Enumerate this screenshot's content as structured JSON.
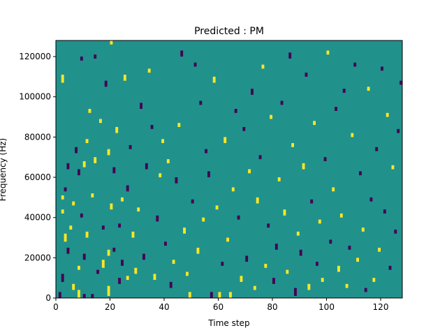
{
  "chart_data": {
    "type": "heatmap",
    "title": "Predicted : PM",
    "xlabel": "Time step",
    "ylabel": "Frequency (Hz)",
    "xlim": [
      0,
      128
    ],
    "ylim": [
      0,
      128000
    ],
    "grid": false,
    "x_ticks": [
      0,
      20,
      40,
      60,
      80,
      100,
      120
    ],
    "x_tick_labels": [
      "0",
      "20",
      "40",
      "60",
      "80",
      "100",
      "120"
    ],
    "y_ticks": [
      0,
      20000,
      40000,
      60000,
      80000,
      100000,
      120000
    ],
    "y_tick_labels": [
      "0",
      "20000",
      "40000",
      "60000",
      "80000",
      "100000",
      "120000"
    ],
    "value_range": [
      -1,
      1
    ],
    "background_value": 0,
    "colors": {
      "background": "#21918c",
      "positive": "#fde725",
      "negative": "#440154"
    },
    "grid_shape": {
      "time_steps": 128,
      "frequency_bins": 128,
      "bin_hz": 1000
    },
    "cells_note_units": "x = time step, y = frequency in Hz, h = band height in Hz, v = value",
    "cells": [
      {
        "x": 1,
        "y": 0,
        "h": 3000,
        "v": -1
      },
      {
        "x": 2,
        "y": 8000,
        "h": 4000,
        "v": -1
      },
      {
        "x": 2,
        "y": 42000,
        "h": 2000,
        "v": 1
      },
      {
        "x": 2,
        "y": 49000,
        "h": 2000,
        "v": 1
      },
      {
        "x": 2,
        "y": 107000,
        "h": 4000,
        "v": 1
      },
      {
        "x": 3,
        "y": 28000,
        "h": 4000,
        "v": 1
      },
      {
        "x": 3,
        "y": 53000,
        "h": 2000,
        "v": -1
      },
      {
        "x": 4,
        "y": 22000,
        "h": 3000,
        "v": -1
      },
      {
        "x": 4,
        "y": 64000,
        "h": 3000,
        "v": -1
      },
      {
        "x": 5,
        "y": 34000,
        "h": 2000,
        "v": 1
      },
      {
        "x": 6,
        "y": 4000,
        "h": 3000,
        "v": 1
      },
      {
        "x": 6,
        "y": 46000,
        "h": 2000,
        "v": 1
      },
      {
        "x": 7,
        "y": 72000,
        "h": 3000,
        "v": -1
      },
      {
        "x": 8,
        "y": 0,
        "h": 4000,
        "v": 1
      },
      {
        "x": 8,
        "y": 14000,
        "h": 2000,
        "v": 1
      },
      {
        "x": 8,
        "y": 61000,
        "h": 3000,
        "v": -1
      },
      {
        "x": 9,
        "y": 40000,
        "h": 2000,
        "v": -1
      },
      {
        "x": 9,
        "y": 118000,
        "h": 2000,
        "v": -1
      },
      {
        "x": 10,
        "y": 0,
        "h": 2000,
        "v": -1
      },
      {
        "x": 10,
        "y": 19000,
        "h": 3000,
        "v": -1
      },
      {
        "x": 10,
        "y": 65000,
        "h": 3000,
        "v": 1
      },
      {
        "x": 11,
        "y": 30000,
        "h": 3000,
        "v": 1
      },
      {
        "x": 11,
        "y": 77000,
        "h": 2000,
        "v": 1
      },
      {
        "x": 12,
        "y": 92000,
        "h": 2000,
        "v": 1
      },
      {
        "x": 13,
        "y": 0,
        "h": 2000,
        "v": -1
      },
      {
        "x": 13,
        "y": 50000,
        "h": 2000,
        "v": 1
      },
      {
        "x": 14,
        "y": 67000,
        "h": 3000,
        "v": 1
      },
      {
        "x": 14,
        "y": 119000,
        "h": 2000,
        "v": -1
      },
      {
        "x": 15,
        "y": 12000,
        "h": 2000,
        "v": -1
      },
      {
        "x": 16,
        "y": 87000,
        "h": 2000,
        "v": 1
      },
      {
        "x": 17,
        "y": 15000,
        "h": 4000,
        "v": 1
      },
      {
        "x": 17,
        "y": 34000,
        "h": 2000,
        "v": -1
      },
      {
        "x": 18,
        "y": 105000,
        "h": 3000,
        "v": -1
      },
      {
        "x": 19,
        "y": 1000,
        "h": 5000,
        "v": 1
      },
      {
        "x": 19,
        "y": 21000,
        "h": 3000,
        "v": 1
      },
      {
        "x": 19,
        "y": 71000,
        "h": 3000,
        "v": 1
      },
      {
        "x": 20,
        "y": 44000,
        "h": 3000,
        "v": 1
      },
      {
        "x": 20,
        "y": 126000,
        "h": 2000,
        "v": 1
      },
      {
        "x": 21,
        "y": 23000,
        "h": 2000,
        "v": -1
      },
      {
        "x": 21,
        "y": 62000,
        "h": 3000,
        "v": -1
      },
      {
        "x": 22,
        "y": 82000,
        "h": 3000,
        "v": 1
      },
      {
        "x": 23,
        "y": 7000,
        "h": 3000,
        "v": -1
      },
      {
        "x": 23,
        "y": 35000,
        "h": 2000,
        "v": -1
      },
      {
        "x": 24,
        "y": 16000,
        "h": 3000,
        "v": -1
      },
      {
        "x": 24,
        "y": 48000,
        "h": 2000,
        "v": 1
      },
      {
        "x": 25,
        "y": 108000,
        "h": 3000,
        "v": 1
      },
      {
        "x": 26,
        "y": 9000,
        "h": 2000,
        "v": 1
      },
      {
        "x": 26,
        "y": 53000,
        "h": 3000,
        "v": -1
      },
      {
        "x": 27,
        "y": 74000,
        "h": 2000,
        "v": -1
      },
      {
        "x": 28,
        "y": 30000,
        "h": 3000,
        "v": 1
      },
      {
        "x": 29,
        "y": 12000,
        "h": 3000,
        "v": 1
      },
      {
        "x": 30,
        "y": 43000,
        "h": 2000,
        "v": 1
      },
      {
        "x": 31,
        "y": 94000,
        "h": 3000,
        "v": -1
      },
      {
        "x": 32,
        "y": 19000,
        "h": 3000,
        "v": -1
      },
      {
        "x": 33,
        "y": 64000,
        "h": 3000,
        "v": -1
      },
      {
        "x": 34,
        "y": 112000,
        "h": 2000,
        "v": 1
      },
      {
        "x": 35,
        "y": 84000,
        "h": 2000,
        "v": -1
      },
      {
        "x": 36,
        "y": 9000,
        "h": 3000,
        "v": 1
      },
      {
        "x": 37,
        "y": 38000,
        "h": 3000,
        "v": -1
      },
      {
        "x": 38,
        "y": 60000,
        "h": 2000,
        "v": 1
      },
      {
        "x": 39,
        "y": 77000,
        "h": 2000,
        "v": 1
      },
      {
        "x": 40,
        "y": 26000,
        "h": 2000,
        "v": -1
      },
      {
        "x": 41,
        "y": 67000,
        "h": 2000,
        "v": 1
      },
      {
        "x": 42,
        "y": 5000,
        "h": 3000,
        "v": -1
      },
      {
        "x": 43,
        "y": 17000,
        "h": 2000,
        "v": 1
      },
      {
        "x": 44,
        "y": 57000,
        "h": 3000,
        "v": -1
      },
      {
        "x": 45,
        "y": 85000,
        "h": 2000,
        "v": 1
      },
      {
        "x": 46,
        "y": 120000,
        "h": 3000,
        "v": -1
      },
      {
        "x": 47,
        "y": 32000,
        "h": 3000,
        "v": 1
      },
      {
        "x": 48,
        "y": 11000,
        "h": 2000,
        "v": 1
      },
      {
        "x": 49,
        "y": 0,
        "h": 3000,
        "v": 1
      },
      {
        "x": 50,
        "y": 47000,
        "h": 2000,
        "v": -1
      },
      {
        "x": 51,
        "y": 115000,
        "h": 2000,
        "v": -1
      },
      {
        "x": 52,
        "y": 22000,
        "h": 3000,
        "v": 1
      },
      {
        "x": 53,
        "y": 96000,
        "h": 2000,
        "v": -1
      },
      {
        "x": 54,
        "y": 38000,
        "h": 2000,
        "v": 1
      },
      {
        "x": 55,
        "y": 72000,
        "h": 2000,
        "v": -1
      },
      {
        "x": 56,
        "y": 60000,
        "h": 3000,
        "v": -1
      },
      {
        "x": 57,
        "y": 0,
        "h": 3000,
        "v": -1
      },
      {
        "x": 58,
        "y": 107000,
        "h": 3000,
        "v": 1
      },
      {
        "x": 59,
        "y": 44000,
        "h": 2000,
        "v": 1
      },
      {
        "x": 60,
        "y": 0,
        "h": 3000,
        "v": 1
      },
      {
        "x": 61,
        "y": 16000,
        "h": 2000,
        "v": -1
      },
      {
        "x": 62,
        "y": 77000,
        "h": 3000,
        "v": 1
      },
      {
        "x": 63,
        "y": 28000,
        "h": 2000,
        "v": 1
      },
      {
        "x": 64,
        "y": 0,
        "h": 3000,
        "v": 1
      },
      {
        "x": 65,
        "y": 53000,
        "h": 2000,
        "v": 1
      },
      {
        "x": 66,
        "y": 92000,
        "h": 2000,
        "v": -1
      },
      {
        "x": 67,
        "y": 39000,
        "h": 2000,
        "v": -1
      },
      {
        "x": 68,
        "y": 8000,
        "h": 3000,
        "v": 1
      },
      {
        "x": 69,
        "y": 83000,
        "h": 2000,
        "v": -1
      },
      {
        "x": 70,
        "y": 18000,
        "h": 3000,
        "v": -1
      },
      {
        "x": 71,
        "y": 62000,
        "h": 2000,
        "v": 1
      },
      {
        "x": 72,
        "y": 101000,
        "h": 3000,
        "v": -1
      },
      {
        "x": 73,
        "y": 4000,
        "h": 2000,
        "v": 1
      },
      {
        "x": 74,
        "y": 47000,
        "h": 3000,
        "v": 1
      },
      {
        "x": 75,
        "y": 69000,
        "h": 2000,
        "v": -1
      },
      {
        "x": 76,
        "y": 114000,
        "h": 2000,
        "v": 1
      },
      {
        "x": 77,
        "y": 15000,
        "h": 2000,
        "v": 1
      },
      {
        "x": 78,
        "y": 35000,
        "h": 2000,
        "v": -1
      },
      {
        "x": 79,
        "y": 89000,
        "h": 2000,
        "v": 1
      },
      {
        "x": 80,
        "y": 7000,
        "h": 3000,
        "v": -1
      },
      {
        "x": 81,
        "y": 24000,
        "h": 3000,
        "v": -1
      },
      {
        "x": 82,
        "y": 58000,
        "h": 2000,
        "v": 1
      },
      {
        "x": 83,
        "y": 96000,
        "h": 2000,
        "v": -1
      },
      {
        "x": 84,
        "y": 41000,
        "h": 3000,
        "v": 1
      },
      {
        "x": 85,
        "y": 12000,
        "h": 2000,
        "v": 1
      },
      {
        "x": 86,
        "y": 119000,
        "h": 3000,
        "v": -1
      },
      {
        "x": 87,
        "y": 75000,
        "h": 2000,
        "v": 1
      },
      {
        "x": 88,
        "y": 1000,
        "h": 4000,
        "v": -1
      },
      {
        "x": 89,
        "y": 31000,
        "h": 2000,
        "v": 1
      },
      {
        "x": 90,
        "y": 21000,
        "h": 3000,
        "v": -1
      },
      {
        "x": 91,
        "y": 64000,
        "h": 3000,
        "v": 1
      },
      {
        "x": 92,
        "y": 110000,
        "h": 2000,
        "v": -1
      },
      {
        "x": 93,
        "y": 4000,
        "h": 3000,
        "v": 1
      },
      {
        "x": 94,
        "y": 47000,
        "h": 2000,
        "v": -1
      },
      {
        "x": 95,
        "y": 86000,
        "h": 2000,
        "v": 1
      },
      {
        "x": 96,
        "y": 16000,
        "h": 2000,
        "v": -1
      },
      {
        "x": 97,
        "y": 37000,
        "h": 2000,
        "v": 1
      },
      {
        "x": 98,
        "y": 8000,
        "h": 2000,
        "v": 1
      },
      {
        "x": 99,
        "y": 68000,
        "h": 2000,
        "v": -1
      },
      {
        "x": 100,
        "y": 121000,
        "h": 2000,
        "v": 1
      },
      {
        "x": 101,
        "y": 27000,
        "h": 2000,
        "v": -1
      },
      {
        "x": 102,
        "y": 53000,
        "h": 2000,
        "v": 1
      },
      {
        "x": 103,
        "y": 93000,
        "h": 2000,
        "v": -1
      },
      {
        "x": 104,
        "y": 13000,
        "h": 3000,
        "v": 1
      },
      {
        "x": 105,
        "y": 40000,
        "h": 2000,
        "v": 1
      },
      {
        "x": 106,
        "y": 102000,
        "h": 2000,
        "v": -1
      },
      {
        "x": 107,
        "y": 5000,
        "h": 2000,
        "v": 1
      },
      {
        "x": 108,
        "y": 24000,
        "h": 2000,
        "v": -1
      },
      {
        "x": 109,
        "y": 80000,
        "h": 2000,
        "v": 1
      },
      {
        "x": 110,
        "y": 115000,
        "h": 2000,
        "v": -1
      },
      {
        "x": 111,
        "y": 18000,
        "h": 2000,
        "v": 1
      },
      {
        "x": 112,
        "y": 61000,
        "h": 2000,
        "v": -1
      },
      {
        "x": 113,
        "y": 33000,
        "h": 2000,
        "v": 1
      },
      {
        "x": 114,
        "y": 3000,
        "h": 2000,
        "v": -1
      },
      {
        "x": 115,
        "y": 103000,
        "h": 2000,
        "v": 1
      },
      {
        "x": 116,
        "y": 48000,
        "h": 2000,
        "v": -1
      },
      {
        "x": 117,
        "y": 8000,
        "h": 2000,
        "v": 1
      },
      {
        "x": 118,
        "y": 73000,
        "h": 2000,
        "v": -1
      },
      {
        "x": 119,
        "y": 23000,
        "h": 2000,
        "v": 1
      },
      {
        "x": 120,
        "y": 113000,
        "h": 2000,
        "v": -1
      },
      {
        "x": 121,
        "y": 42000,
        "h": 2000,
        "v": -1
      },
      {
        "x": 122,
        "y": 90000,
        "h": 2000,
        "v": 1
      },
      {
        "x": 123,
        "y": 14000,
        "h": 2000,
        "v": -1
      },
      {
        "x": 124,
        "y": 64000,
        "h": 2000,
        "v": 1
      },
      {
        "x": 125,
        "y": 32000,
        "h": 2000,
        "v": -1
      },
      {
        "x": 126,
        "y": 82000,
        "h": 2000,
        "v": -1
      },
      {
        "x": 127,
        "y": 106000,
        "h": 2000,
        "v": -1
      }
    ]
  }
}
